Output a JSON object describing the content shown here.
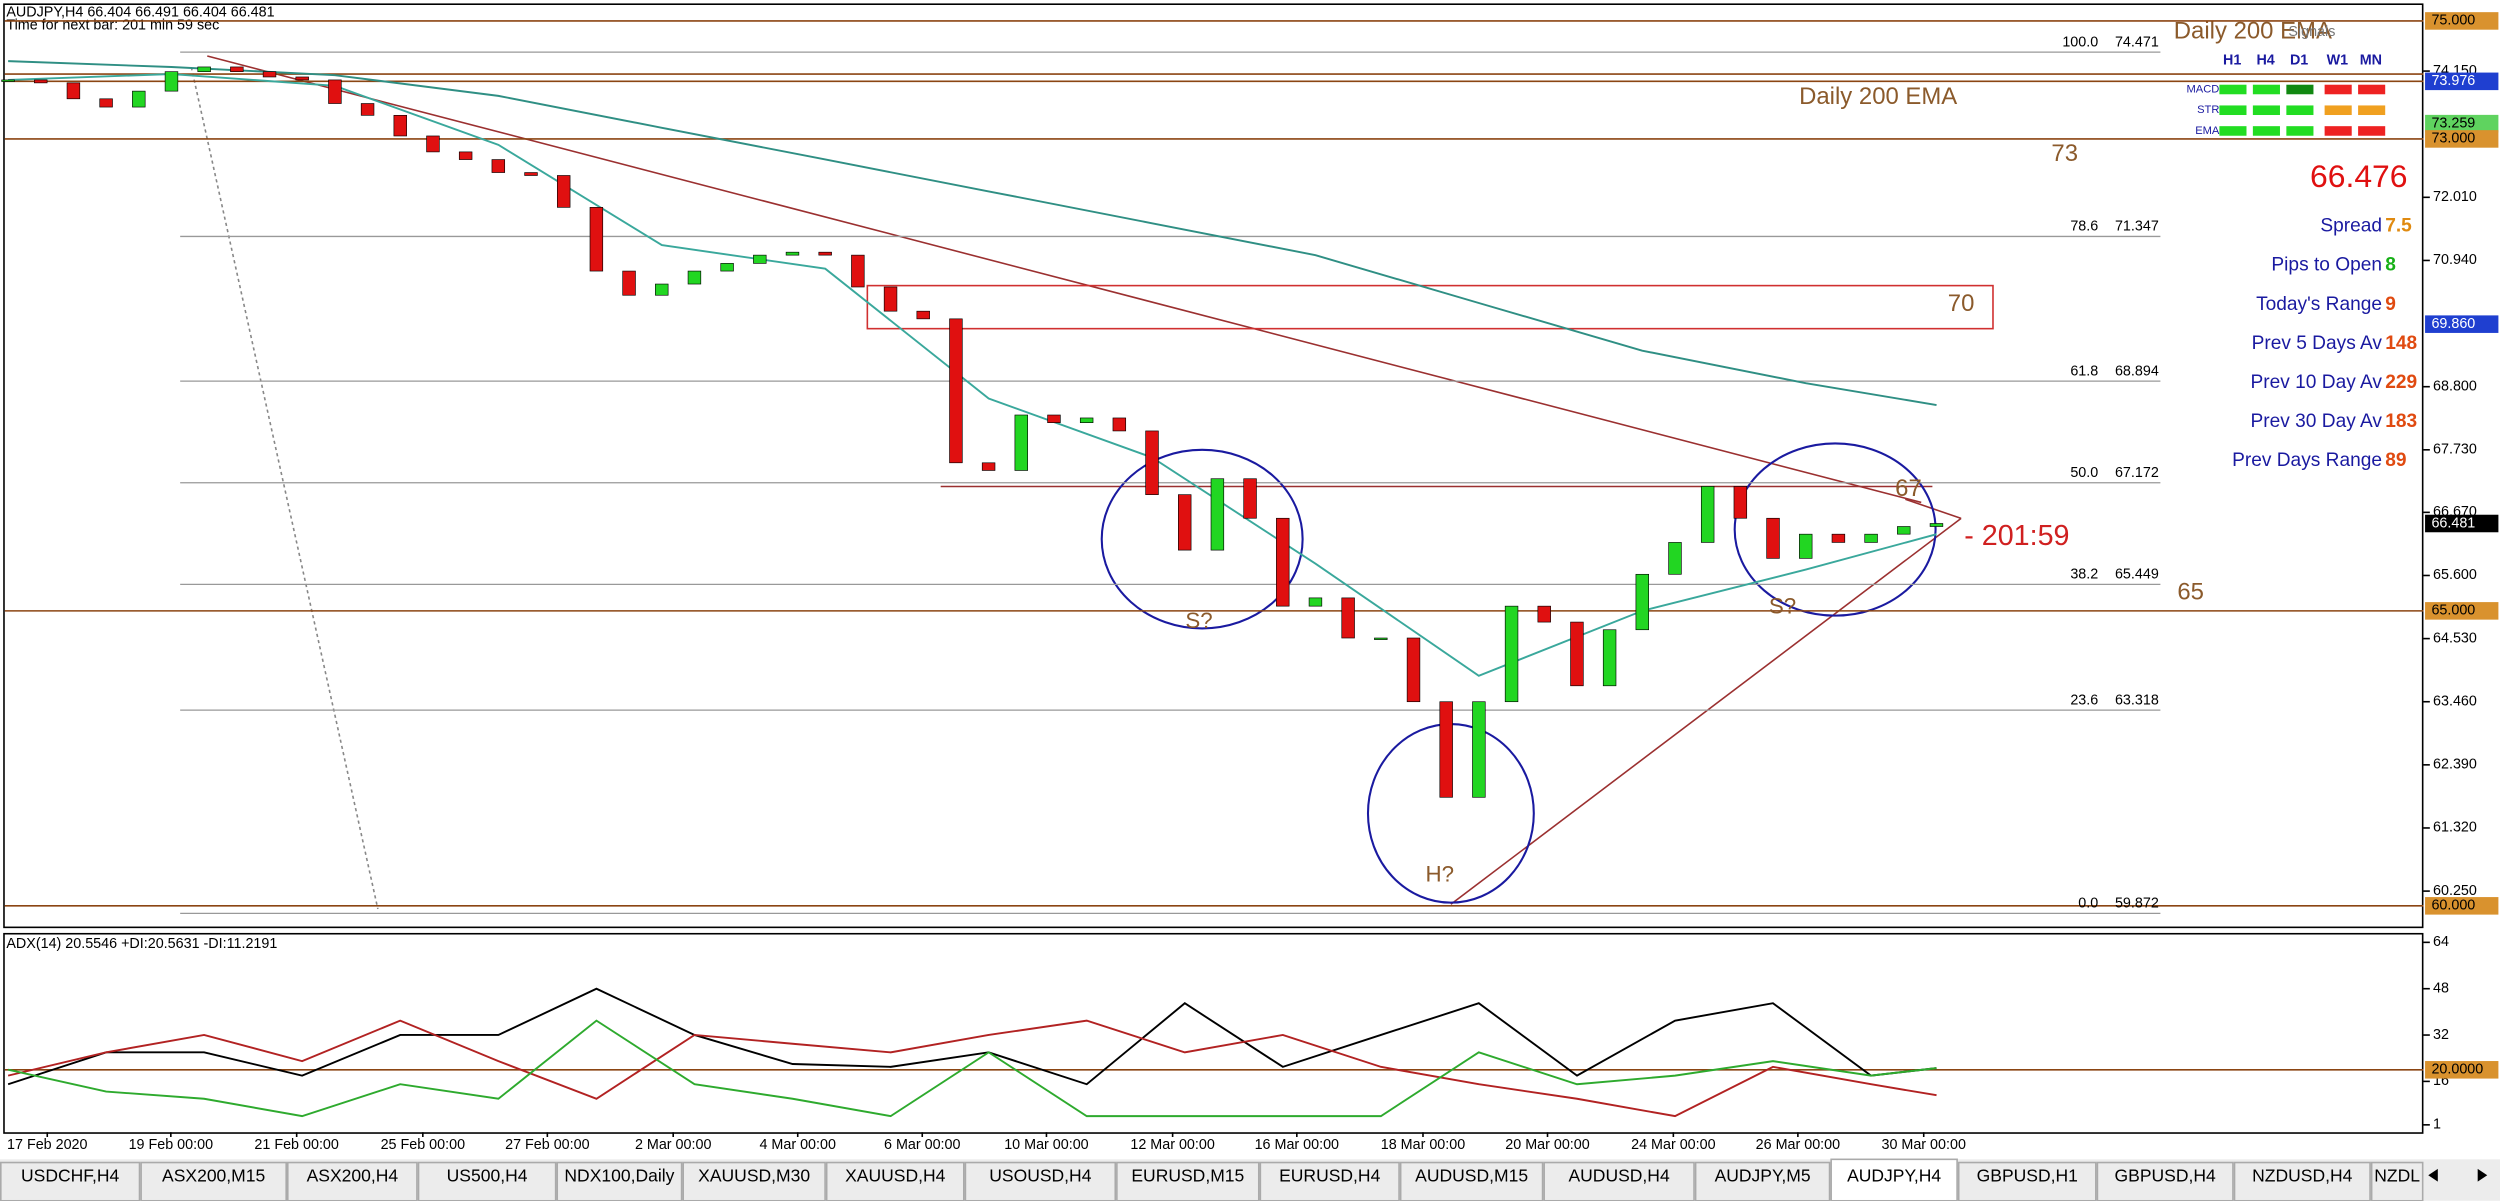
{
  "header": {
    "symbol": "AUDJPY,H4  66.404 66.491 66.404 66.481",
    "timer": "Time for next bar: 201 min 59 sec"
  },
  "chart_data": [
    {
      "type": "candlestick",
      "closes": [
        74.0,
        73.95,
        73.68,
        73.54,
        73.81,
        74.14,
        74.22,
        74.14,
        74.05,
        74.0,
        73.6,
        73.4,
        73.05,
        72.78,
        72.65,
        72.43,
        72.38,
        71.84,
        70.76,
        70.35,
        70.54,
        70.76,
        70.89,
        71.03,
        71.08,
        71.03,
        70.49,
        70.08,
        69.95,
        67.51,
        67.38,
        68.32,
        68.19,
        68.27,
        68.05,
        66.97,
        66.03,
        67.24,
        66.57,
        65.08,
        65.22,
        64.54,
        64.54,
        63.46,
        61.84,
        63.46,
        65.08,
        64.81,
        63.73,
        64.68,
        65.62,
        66.16,
        67.11,
        66.57,
        65.89,
        66.3,
        66.16,
        66.3,
        66.43,
        66.481
      ],
      "up_color": "#22d622",
      "down_color": "#e01010",
      "series": [
        {
          "color": "#2f8f84",
          "x": [
            0,
            5,
            10,
            15,
            20,
            25,
            30,
            35,
            40,
            45,
            50,
            55,
            59
          ],
          "values": [
            74.32,
            74.22,
            74.08,
            73.73,
            73.19,
            72.65,
            72.11,
            71.57,
            71.03,
            70.22,
            69.41,
            68.86,
            68.49
          ]
        },
        {
          "color": "#3aa89c",
          "x": [
            0,
            5,
            10,
            15,
            20,
            25,
            30,
            35,
            40,
            45,
            50,
            55,
            59
          ],
          "values": [
            74.0,
            74.1,
            73.9,
            72.9,
            71.2,
            70.8,
            68.6,
            67.6,
            65.8,
            63.9,
            65.0,
            65.7,
            66.3
          ]
        }
      ],
      "xlim": [
        -0.1,
        73.9
      ],
      "xticks": [
        {
          "value": 1.2,
          "label": "17 Feb 2020"
        },
        {
          "value": 4.98,
          "label": "19 Feb 00:00"
        },
        {
          "value": 8.83,
          "label": "21 Feb 00:00"
        },
        {
          "value": 12.69,
          "label": "25 Feb 00:00"
        },
        {
          "value": 16.5,
          "label": "27 Feb 00:00"
        },
        {
          "value": 20.35,
          "label": "2 Mar 00:00"
        },
        {
          "value": 24.16,
          "label": "4 Mar 00:00"
        },
        {
          "value": 27.97,
          "label": "6 Mar 00:00"
        },
        {
          "value": 31.77,
          "label": "10 Mar 00:00"
        },
        {
          "value": 35.63,
          "label": "12 Mar 00:00"
        },
        {
          "value": 39.43,
          "label": "16 Mar 00:00"
        },
        {
          "value": 43.29,
          "label": "18 Mar 00:00"
        },
        {
          "value": 47.1,
          "label": "20 Mar 00:00"
        },
        {
          "value": 50.95,
          "label": "24 Mar 00:00"
        },
        {
          "value": 54.76,
          "label": "26 Mar 00:00"
        },
        {
          "value": 58.61,
          "label": "30 Mar 00:00"
        }
      ],
      "ylim": [
        59.676,
        75.216
      ],
      "yticks": [
        {
          "value": 74.15,
          "label": "74.150"
        },
        {
          "value": 72.01,
          "label": "72.010"
        },
        {
          "value": 70.94,
          "label": "70.940"
        },
        {
          "value": 68.8,
          "label": "68.800"
        },
        {
          "value": 67.73,
          "label": "67.730"
        },
        {
          "value": 66.67,
          "label": "66.670"
        },
        {
          "value": 65.6,
          "label": "65.600"
        },
        {
          "value": 64.53,
          "label": "64.530"
        },
        {
          "value": 63.46,
          "label": "63.460"
        },
        {
          "value": 62.39,
          "label": "62.390"
        },
        {
          "value": 61.32,
          "label": "61.320"
        },
        {
          "value": 60.25,
          "label": "60.250"
        }
      ],
      "price_tags": [
        {
          "value": 75,
          "label": "75.000",
          "color": "#d9922e"
        },
        {
          "value": 73.976,
          "label": "73.976",
          "color": "#1f3fd0"
        },
        {
          "value": 73.259,
          "label": "73.259",
          "color": "#5fd35f"
        },
        {
          "value": 73,
          "label": "73.000",
          "color": "#d9922e"
        },
        {
          "value": 69.86,
          "label": "69.860",
          "color": "#1f3fd0"
        },
        {
          "value": 66.481,
          "label": "66.481",
          "color": "#000000"
        },
        {
          "value": 65,
          "label": "65.000",
          "color": "#d9922e"
        },
        {
          "value": 60,
          "label": "60.000",
          "color": "#d9922e"
        }
      ],
      "level_lines": [
        75,
        74.1,
        73.976,
        73,
        65,
        60
      ],
      "level_labels": [
        73,
        70,
        67,
        65
      ],
      "fib": [
        {
          "level": "100.0",
          "price": 74.471
        },
        {
          "level": "78.6",
          "price": 71.347
        },
        {
          "level": "61.8",
          "price": 68.894
        },
        {
          "level": "50.0",
          "price": 67.172
        },
        {
          "level": "38.2",
          "price": 65.449
        },
        {
          "level": "23.6",
          "price": 63.318
        },
        {
          "level": "0.0",
          "price": 59.872
        }
      ],
      "annotations": [
        "Daily 200 EMA",
        "S?",
        "S?",
        "H?",
        "- 201:59"
      ]
    },
    {
      "type": "line",
      "title": "ADX(14) 20.5546 +DI:20.5631 -DI:11.2191",
      "series": [
        {
          "color": "#000000",
          "x": [
            0,
            3,
            6,
            9,
            12,
            15,
            18,
            21,
            24,
            27,
            30,
            33,
            36,
            39,
            42,
            45,
            48,
            51,
            54,
            57,
            59
          ],
          "values": [
            15,
            26,
            26,
            18,
            32,
            32,
            48,
            32,
            22,
            21,
            26,
            15,
            43,
            21,
            32,
            43,
            18,
            37,
            43,
            18,
            20.5546
          ]
        },
        {
          "color": "#b22222",
          "x": [
            0,
            3,
            6,
            9,
            12,
            15,
            18,
            21,
            24,
            27,
            30,
            33,
            36,
            39,
            42,
            45,
            48,
            51,
            54,
            57,
            59
          ],
          "values": [
            18,
            26,
            32,
            23,
            37,
            23,
            10,
            32,
            29,
            26,
            32,
            37,
            26,
            32,
            21,
            15,
            10,
            4,
            21,
            15,
            11.2191
          ]
        },
        {
          "color": "#2eaa2e",
          "x": [
            0,
            3,
            6,
            9,
            12,
            15,
            18,
            21,
            24,
            27,
            30,
            33,
            36,
            39,
            42,
            45,
            48,
            51,
            54,
            57,
            59
          ],
          "values": [
            20,
            12.5,
            10,
            4,
            15,
            10,
            37,
            15,
            10,
            4,
            26,
            4,
            4,
            4,
            4,
            26,
            15,
            18,
            23,
            18,
            20.5631
          ]
        }
      ],
      "ylim": [
        -1,
        64.5
      ],
      "yticks": [
        64,
        48,
        32,
        16,
        1
      ],
      "price_tags": [
        {
          "value": 20,
          "label": "20.0000",
          "color": "#d9922e"
        }
      ]
    }
  ],
  "panel": {
    "title": "Daily 200 EMA",
    "signals": "Signals",
    "timeframes": [
      "H1",
      "H4",
      "D1",
      "W1",
      "MN"
    ],
    "rows": [
      {
        "name": "MACD",
        "colors": [
          "#22dd22",
          "#22dd22",
          "#118811",
          "#ee2222",
          "#ee2222"
        ]
      },
      {
        "name": "STR",
        "colors": [
          "#22dd22",
          "#22dd22",
          "#22dd22",
          "#f0a020",
          "#f0a020"
        ]
      },
      {
        "name": "EMA",
        "colors": [
          "#22dd22",
          "#22dd22",
          "#22dd22",
          "#ee2222",
          "#ee2222"
        ]
      }
    ],
    "bid": 66.476,
    "stats": [
      {
        "label": "Spread",
        "value": 7.5,
        "color": "#e08a10"
      },
      {
        "label": "Pips to Open",
        "value": 8,
        "color": "#17b017"
      },
      {
        "label": "Today's Range",
        "value": 9,
        "color": "#e04a10"
      },
      {
        "label": "Prev 5 Days Av",
        "value": 148,
        "color": "#e04a10"
      },
      {
        "label": "Prev 10 Day Av",
        "value": 229,
        "color": "#e04a10"
      },
      {
        "label": "Prev 30 Day Av",
        "value": 183,
        "color": "#e04a10"
      },
      {
        "label": "Prev Days Range",
        "value": 89,
        "color": "#e04a10"
      }
    ]
  },
  "tabs": [
    "USDCHF,H4",
    "ASX200,M15",
    "ASX200,H4",
    "US500,H4",
    "NDX100,Daily",
    "XAUUSD,M30",
    "XAUUSD,H4",
    "USOUSD,H4",
    "EURUSD,M15",
    "EURUSD,H4",
    "AUDUSD,M15",
    "AUDUSD,H4",
    "AUDJPY,M5",
    "AUDJPY,H4",
    "GBPUSD,H1",
    "GBPUSD,H4",
    "NZDUSD,H4",
    "NZDL"
  ],
  "active_tab": 13
}
